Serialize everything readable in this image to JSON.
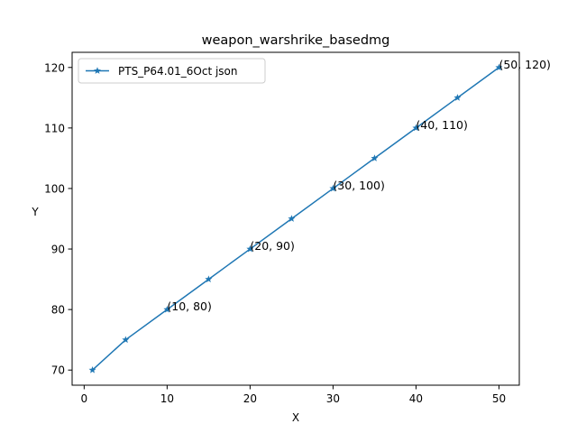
{
  "chart_data": {
    "type": "line",
    "title": "weapon_warshrike_basedmg",
    "xlabel": "X",
    "ylabel": "Y",
    "xlim": [
      -1.45,
      52.45
    ],
    "ylim": [
      67.5,
      122.5
    ],
    "x_ticks": [
      0,
      10,
      20,
      30,
      40,
      50
    ],
    "y_ticks": [
      70,
      80,
      90,
      100,
      110,
      120
    ],
    "grid": false,
    "legend": "upper-left",
    "series": [
      {
        "name": "PTS_P64.01_6Oct json",
        "color": "#1f77b4",
        "marker": "star",
        "x": [
          1,
          5,
          10,
          15,
          20,
          25,
          30,
          35,
          40,
          45,
          50
        ],
        "y": [
          70,
          75,
          80,
          85,
          90,
          95,
          100,
          105,
          110,
          115,
          120
        ]
      }
    ],
    "annotations": [
      {
        "x": 10,
        "y": 80,
        "text": "(10, 80)"
      },
      {
        "x": 20,
        "y": 90,
        "text": "(20, 90)"
      },
      {
        "x": 30,
        "y": 100,
        "text": "(30, 100)"
      },
      {
        "x": 40,
        "y": 110,
        "text": "(40, 110)"
      },
      {
        "x": 50,
        "y": 120,
        "text": "(50, 120)"
      }
    ]
  }
}
